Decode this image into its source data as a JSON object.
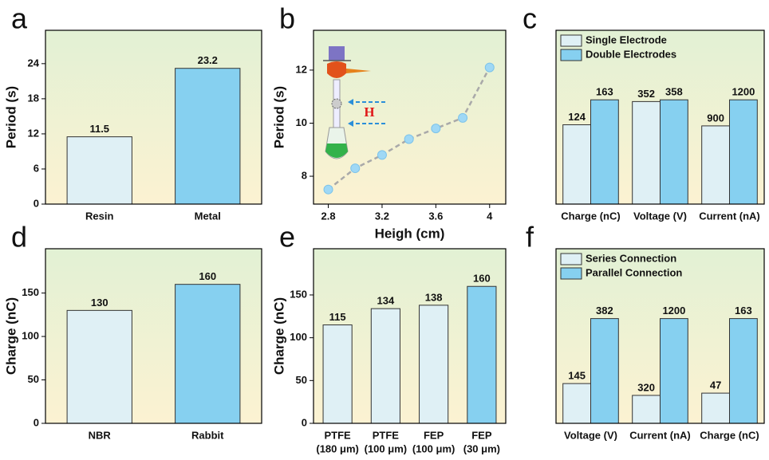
{
  "chart_data": [
    {
      "type": "bar",
      "label": "a",
      "ylabel": "Period (s)",
      "categories": [
        "Resin",
        "Metal"
      ],
      "values": [
        11.5,
        23.2
      ],
      "colors": [
        "#dff0f5",
        "#86d0f0"
      ],
      "ylim": [
        0,
        29.7
      ],
      "yticks": [
        0,
        6,
        12,
        18,
        24
      ]
    },
    {
      "type": "line",
      "label": "b",
      "xlabel": "Heigh (cm)",
      "ylabel": "Period (s)",
      "annotation": "H",
      "x": [
        2.8,
        3.0,
        3.2,
        3.4,
        3.6,
        3.8,
        4.0
      ],
      "values": [
        7.5,
        8.3,
        8.8,
        9.4,
        9.8,
        10.2,
        12.1
      ],
      "color": "#9fd8f5",
      "xlim": [
        2.69,
        4.12
      ],
      "xticks": [
        2.8,
        3.2,
        3.6,
        4.0
      ],
      "ylim": [
        6.95,
        13.5
      ],
      "yticks": [
        8,
        10,
        12
      ]
    },
    {
      "type": "grouped_bar",
      "label": "c",
      "categories": [
        "Charge (nC)",
        "Voltage (V)",
        "Current (nA)"
      ],
      "series": [
        {
          "name": "Single Electrode",
          "color": "#dff0f5",
          "values": [
            124,
            352,
            900
          ]
        },
        {
          "name": "Double Electrodes",
          "color": "#86d0f0",
          "values": [
            163,
            358,
            1200
          ]
        }
      ]
    },
    {
      "type": "bar",
      "label": "d",
      "ylabel": "Charge (nC)",
      "categories": [
        "NBR",
        "Rabbit"
      ],
      "values": [
        130,
        160
      ],
      "colors": [
        "#dff0f5",
        "#86d0f0"
      ],
      "ylim": [
        0,
        201
      ],
      "yticks": [
        0,
        50,
        100,
        150
      ]
    },
    {
      "type": "bar",
      "label": "e",
      "ylabel": "Charge (nC)",
      "categories": [
        [
          "PTFE",
          "(180 μm)"
        ],
        [
          "PTFE",
          "(100 μm)"
        ],
        [
          "FEP",
          "(100 μm)"
        ],
        [
          "FEP",
          "(30 μm)"
        ]
      ],
      "values": [
        115,
        134,
        138,
        160
      ],
      "colors": [
        "#dff0f5",
        "#dff0f5",
        "#dff0f5",
        "#86d0f0"
      ],
      "ylim": [
        0,
        204
      ],
      "yticks": [
        0,
        50,
        100,
        150
      ]
    },
    {
      "type": "grouped_bar",
      "label": "f",
      "categories": [
        "Voltage (V)",
        "Current (nA)",
        "Charge (nC)"
      ],
      "series": [
        {
          "name": "Series Connection",
          "color": "#dff0f5",
          "values": [
            145,
            320,
            47
          ]
        },
        {
          "name": "Parallel Connection",
          "color": "#86d0f0",
          "values": [
            382,
            1200,
            163
          ]
        }
      ]
    }
  ]
}
